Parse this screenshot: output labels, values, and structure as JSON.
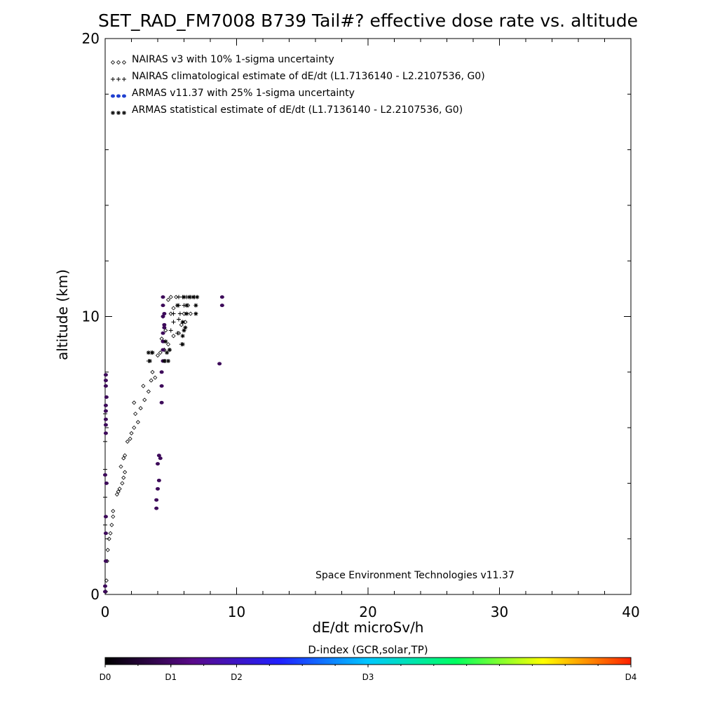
{
  "chart_data": {
    "type": "scatter",
    "title": "SET_RAD_FM7008  B739 Tail#? effective dose rate vs. altitude",
    "xlabel": "dE/dt microSv/h",
    "ylabel": "altitude (km)",
    "xlim": [
      0,
      40
    ],
    "ylim": [
      0,
      20
    ],
    "x_ticks": [
      0,
      10,
      20,
      30,
      40
    ],
    "y_ticks": [
      0,
      10,
      20
    ],
    "legend_position": "top-left",
    "credit": "Space Environment Technologies v11.37",
    "series": [
      {
        "name": "NAIRAS v3 with 10% 1-sigma uncertainty",
        "marker": "diamond",
        "color": "#000000",
        "points": [
          [
            0.05,
            0.1
          ],
          [
            0.1,
            0.5
          ],
          [
            0.15,
            1.2
          ],
          [
            0.2,
            1.6
          ],
          [
            0.3,
            2.0
          ],
          [
            0.4,
            2.2
          ],
          [
            0.5,
            2.5
          ],
          [
            0.6,
            2.8
          ],
          [
            0.6,
            3.0
          ],
          [
            0.9,
            3.6
          ],
          [
            1.0,
            3.7
          ],
          [
            1.1,
            3.8
          ],
          [
            1.3,
            4.0
          ],
          [
            1.4,
            4.2
          ],
          [
            1.5,
            4.4
          ],
          [
            1.2,
            4.6
          ],
          [
            1.4,
            4.9
          ],
          [
            1.5,
            5.0
          ],
          [
            1.7,
            5.5
          ],
          [
            1.9,
            5.6
          ],
          [
            2.0,
            5.8
          ],
          [
            2.2,
            6.0
          ],
          [
            2.5,
            6.2
          ],
          [
            2.3,
            6.5
          ],
          [
            2.7,
            6.7
          ],
          [
            2.2,
            6.9
          ],
          [
            3.0,
            7.0
          ],
          [
            3.3,
            7.3
          ],
          [
            2.9,
            7.5
          ],
          [
            3.5,
            7.7
          ],
          [
            3.8,
            7.8
          ],
          [
            3.6,
            8.0
          ],
          [
            4.0,
            8.6
          ],
          [
            4.2,
            8.7
          ],
          [
            4.5,
            8.8
          ],
          [
            4.8,
            9.0
          ],
          [
            4.3,
            9.2
          ],
          [
            5.2,
            9.3
          ],
          [
            5.6,
            9.4
          ],
          [
            4.6,
            9.5
          ],
          [
            5.8,
            9.7
          ],
          [
            6.1,
            9.8
          ],
          [
            4.4,
            10.0
          ],
          [
            5.0,
            10.1
          ],
          [
            6.0,
            10.1
          ],
          [
            6.5,
            10.1
          ],
          [
            5.2,
            10.3
          ],
          [
            6.3,
            10.4
          ],
          [
            4.8,
            10.6
          ],
          [
            5.0,
            10.7
          ],
          [
            5.4,
            10.7
          ]
        ]
      },
      {
        "name": "NAIRAS climatological estimate of dE/dt (L1.7136140 - L2.2107536, G0)",
        "marker": "plus",
        "color": "#000000",
        "points": [
          [
            0.0,
            2.5
          ],
          [
            0.0,
            3.5
          ],
          [
            0.0,
            4.5
          ],
          [
            0.0,
            5.5
          ],
          [
            0.0,
            6.5
          ],
          [
            3.3,
            8.4
          ],
          [
            3.5,
            8.7
          ],
          [
            4.6,
            8.4
          ],
          [
            4.9,
            8.8
          ],
          [
            5.0,
            9.5
          ],
          [
            5.5,
            9.4
          ],
          [
            5.8,
            9.0
          ],
          [
            5.2,
            9.8
          ],
          [
            5.6,
            9.9
          ],
          [
            5.2,
            10.1
          ],
          [
            5.7,
            10.1
          ],
          [
            5.6,
            10.4
          ],
          [
            6.0,
            10.4
          ],
          [
            5.6,
            10.7
          ],
          [
            5.9,
            10.7
          ],
          [
            6.2,
            10.7
          ],
          [
            6.5,
            10.7
          ],
          [
            6.8,
            10.7
          ]
        ]
      },
      {
        "name": "ARMAS v11.37 with 25% 1-sigma uncertainty",
        "marker": "dot",
        "color": "#3d0a5a",
        "legend_color": "#1f3fd0",
        "points": [
          [
            0.0,
            0.1
          ],
          [
            0.0,
            0.3
          ],
          [
            0.05,
            1.2
          ],
          [
            0.05,
            2.2
          ],
          [
            0.05,
            2.8
          ],
          [
            0.1,
            4.0
          ],
          [
            0.0,
            4.3
          ],
          [
            0.05,
            5.8
          ],
          [
            0.05,
            6.1
          ],
          [
            0.05,
            6.3
          ],
          [
            0.05,
            6.6
          ],
          [
            0.05,
            6.8
          ],
          [
            0.1,
            7.1
          ],
          [
            0.05,
            7.5
          ],
          [
            0.05,
            7.7
          ],
          [
            0.05,
            7.9
          ],
          [
            3.9,
            3.1
          ],
          [
            3.9,
            3.4
          ],
          [
            4.0,
            3.8
          ],
          [
            4.1,
            4.1
          ],
          [
            4.0,
            4.7
          ],
          [
            4.2,
            4.9
          ],
          [
            4.1,
            5.0
          ],
          [
            4.3,
            6.9
          ],
          [
            4.3,
            7.5
          ],
          [
            4.3,
            8.0
          ],
          [
            4.4,
            8.4
          ],
          [
            4.4,
            8.8
          ],
          [
            4.4,
            9.1
          ],
          [
            4.4,
            9.4
          ],
          [
            4.5,
            9.6
          ],
          [
            4.5,
            9.7
          ],
          [
            4.4,
            10.0
          ],
          [
            4.5,
            10.1
          ],
          [
            4.4,
            10.4
          ],
          [
            4.4,
            10.7
          ],
          [
            8.7,
            8.3
          ],
          [
            8.9,
            10.4
          ],
          [
            8.9,
            10.7
          ]
        ]
      },
      {
        "name": "ARMAS statistical estimate of dE/dt (L1.7136140 - L2.2107536, G0)",
        "marker": "asterisk",
        "color": "#000000",
        "points": [
          [
            3.3,
            8.7
          ],
          [
            3.4,
            8.4
          ],
          [
            3.6,
            8.7
          ],
          [
            4.5,
            8.4
          ],
          [
            4.8,
            8.4
          ],
          [
            4.7,
            8.7
          ],
          [
            4.9,
            8.8
          ],
          [
            4.6,
            9.1
          ],
          [
            5.9,
            9.0
          ],
          [
            5.9,
            9.3
          ],
          [
            6.0,
            9.5
          ],
          [
            6.1,
            9.6
          ],
          [
            5.9,
            9.8
          ],
          [
            5.5,
            10.4
          ],
          [
            6.2,
            10.4
          ],
          [
            6.9,
            10.4
          ],
          [
            6.2,
            10.1
          ],
          [
            6.9,
            10.1
          ],
          [
            6.0,
            10.7
          ],
          [
            6.4,
            10.7
          ],
          [
            6.7,
            10.7
          ],
          [
            7.0,
            10.7
          ]
        ]
      }
    ],
    "colorbar": {
      "title": "D-index (GCR,solar,TP)",
      "labels": [
        {
          "text": "D0",
          "value": 0
        },
        {
          "text": "D1",
          "value": 1
        },
        {
          "text": "D2",
          "value": 2
        },
        {
          "text": "D3",
          "value": 4
        },
        {
          "text": "D4",
          "value": 8
        }
      ],
      "range": [
        0,
        8
      ],
      "colors": [
        "#000000",
        "#5a0a8a",
        "#2020ff",
        "#00c8ff",
        "#00ff60",
        "#ffff00",
        "#ff2000"
      ]
    }
  }
}
